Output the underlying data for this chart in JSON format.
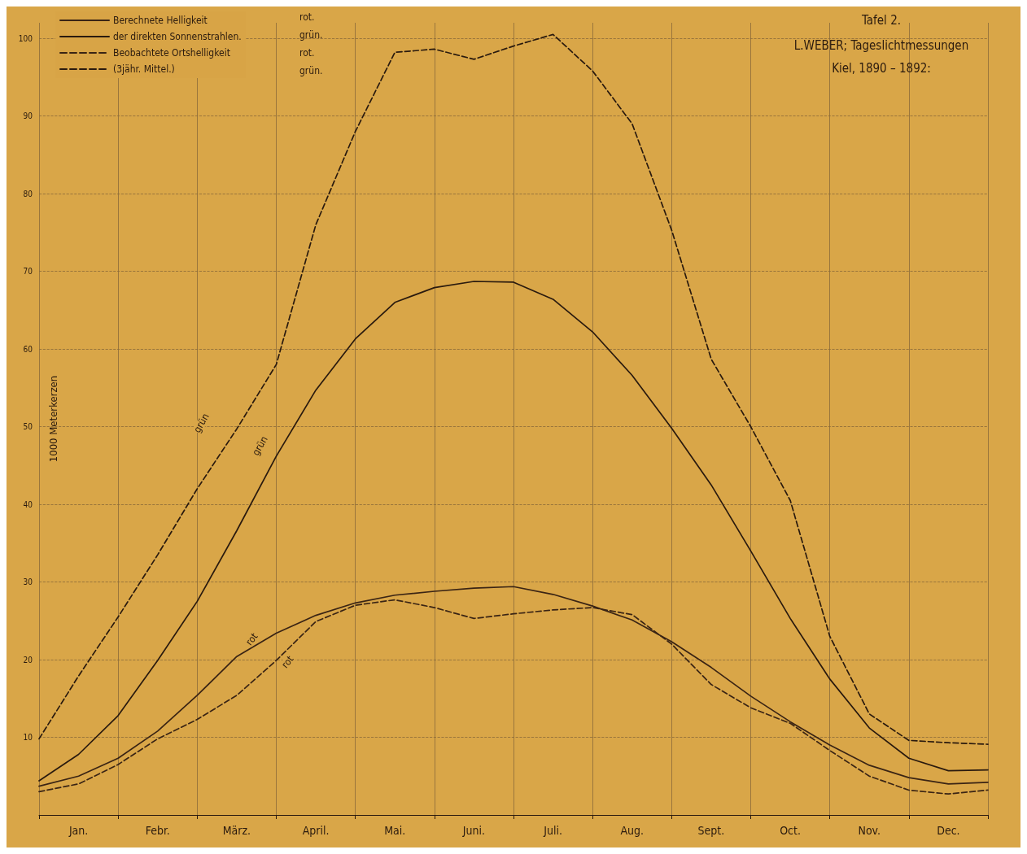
{
  "chart_data": {
    "type": "line",
    "title": "Tafel 2.",
    "subtitle": "L.WEBER; Tageslichtmessungen\nKiel, 1890 – 1892:",
    "ylabel": "1000 Meterkerzen",
    "categories": [
      null,
      "Jan.",
      null,
      "Febr.",
      null,
      "März.",
      null,
      "April.",
      null,
      "Mai.",
      null,
      "Juni.",
      null,
      "Juli.",
      null,
      "Aug.",
      null,
      "Sept.",
      null,
      "Oct.",
      null,
      "Nov.",
      null,
      "Dec.",
      null
    ],
    "ylim": [
      0,
      102
    ],
    "yticks": [
      10,
      20,
      30,
      40,
      50,
      60,
      70,
      80,
      90,
      100
    ],
    "grid": true,
    "legend": "top left",
    "marker": "none",
    "series": [
      {
        "name": "Berechnete Helligkeit",
        "color": "#3a2414",
        "line_style": "solid",
        "values": [
          3.7,
          5,
          7.3,
          10.8,
          15.4,
          20.4,
          23.4,
          25.7,
          27.3,
          28.3,
          28.8,
          29.2,
          29.4,
          28.4,
          26.9,
          25.1,
          22.3,
          19,
          15.3,
          12,
          9,
          6.4,
          4.8,
          4,
          4.2
        ]
      },
      {
        "name": "der direkten Sonnenstrahlen.",
        "color": "#2a1a0e",
        "line_style": "solid",
        "values": [
          4.4,
          7.8,
          12.8,
          19.9,
          27.5,
          36.6,
          46.2,
          54.7,
          61.3,
          66,
          67.9,
          68.7,
          68.6,
          66.4,
          62.2,
          56.6,
          49.8,
          42.5,
          34,
          25.3,
          17.5,
          11.2,
          7.3,
          5.7,
          5.8
        ]
      },
      {
        "name": "Beobachtete Ortshelligkeit",
        "color": "#3a2414",
        "line_style": "dashed",
        "values": [
          3,
          4,
          6.5,
          9.8,
          12.3,
          15.4,
          19.9,
          24.9,
          27,
          27.7,
          26.7,
          25.3,
          25.9,
          26.4,
          26.7,
          25.8,
          22,
          16.8,
          13.8,
          11.8,
          8.3,
          5,
          3.2,
          2.7,
          3.2
        ]
      },
      {
        "name": "(3jähr. Mittel.)",
        "color": "#2a1a0e",
        "line_style": "dashed",
        "values": [
          9.8,
          17.9,
          25.5,
          33.5,
          42,
          49.7,
          58,
          76,
          88,
          98.2,
          98.6,
          97.3,
          99,
          100.5,
          95.8,
          89,
          75.3,
          58.7,
          50,
          40.5,
          23,
          13,
          9.6,
          9.3,
          9.1
        ]
      }
    ],
    "annotations": [
      "rot.",
      "grün.",
      "rot.",
      "grün.",
      "grün",
      "grün",
      "rot",
      "rot"
    ]
  }
}
